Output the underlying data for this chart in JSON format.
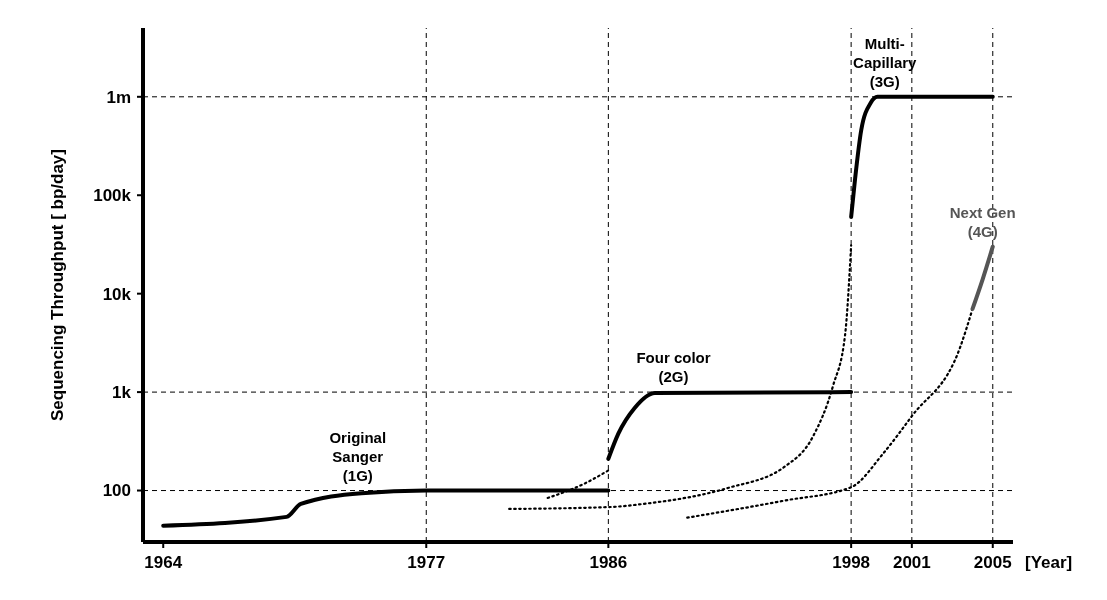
{
  "chart_data": {
    "type": "line",
    "ylabel": "Sequencing Throughput [ bp/day]",
    "xlabel": "[Year]",
    "log": "y",
    "grid": false,
    "marker": "none",
    "xlim": [
      1963,
      2006
    ],
    "xticks": [
      1964,
      1977,
      1986,
      1998,
      2001,
      2005
    ],
    "ylim": [
      30,
      5000000
    ],
    "yticks": [
      {
        "value": 100,
        "label": "100"
      },
      {
        "value": 1000,
        "label": "1k"
      },
      {
        "value": 10000,
        "label": "10k"
      },
      {
        "value": 100000,
        "label": "100k"
      },
      {
        "value": 1000000,
        "label": "1m"
      }
    ],
    "series": [
      {
        "name": "Original Sanger (1G)",
        "color": "#000000",
        "line_style": "solid",
        "x": [
          1964,
          1970.1,
          1970.8,
          1973.8,
          1977,
          1986
        ],
        "values": [
          44,
          54,
          73,
          94,
          100,
          100
        ]
      },
      {
        "color": "#000000",
        "line_style": "dotted",
        "x": [
          1983,
          1984.8,
          1986
        ],
        "values": [
          84,
          117,
          160
        ]
      },
      {
        "name": "Four color (2G)",
        "color": "#000000",
        "line_style": "solid",
        "x": [
          1986,
          1986.5,
          1987.3,
          1988.3,
          1998
        ],
        "values": [
          210,
          380,
          690,
          980,
          1000
        ]
      },
      {
        "color": "#000000",
        "line_style": "dotted",
        "x": [
          1981.1,
          1986.1,
          1987.7,
          1991.9,
          1994.7,
          1996.1,
          1997.1,
          1997.7,
          1998
        ],
        "values": [
          65,
          68,
          73,
          106,
          174,
          350,
          1150,
          3800,
          31000
        ]
      },
      {
        "name": "Multi-Capillary (3G)",
        "color": "#000000",
        "line_style": "solid",
        "x": [
          1998,
          1998.2,
          1998.5,
          1998.97,
          1999.3,
          2005
        ],
        "values": [
          60000,
          150000,
          460000,
          870000,
          1000000,
          1000000
        ]
      },
      {
        "color": "#000000",
        "line_style": "dotted",
        "x": [
          1989.9,
          1994.7,
          1998,
          1999.6,
          2001,
          2003.4,
          2004
        ],
        "values": [
          53,
          79,
          108,
          240,
          570,
          2900,
          7000
        ]
      },
      {
        "name": "Next Gen (4G)",
        "color": "#555555",
        "line_style": "solid",
        "x": [
          2004,
          2004.5,
          2005
        ],
        "values": [
          7000,
          14000,
          30000
        ]
      }
    ],
    "ref_lines": [
      {
        "axis": "x",
        "value": 1977,
        "line_style": "dashed"
      },
      {
        "axis": "x",
        "value": 1986,
        "line_style": "dashed"
      },
      {
        "axis": "x",
        "value": 1998,
        "line_style": "dashed"
      },
      {
        "axis": "x",
        "value": 2001,
        "line_style": "dashed"
      },
      {
        "axis": "x",
        "value": 2005,
        "line_style": "dashed"
      },
      {
        "axis": "y",
        "value": 100,
        "line_style": "dashed"
      },
      {
        "axis": "y",
        "value": 1000,
        "line_style": "dashed"
      },
      {
        "axis": "y",
        "value": 1000000,
        "line_style": "dashed"
      }
    ]
  }
}
